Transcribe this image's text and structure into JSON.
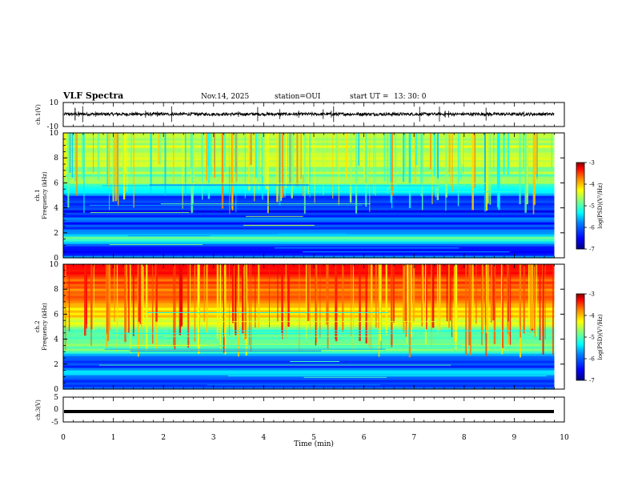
{
  "header": {
    "title": "VLF Spectra",
    "date": "Nov.14, 2025",
    "station": "station=OUI",
    "start_label": "start  UT  =",
    "start_time": "13: 30: 0"
  },
  "colors": {
    "jet": [
      "#00007f",
      "#0000ff",
      "#007fff",
      "#00ffff",
      "#7fff7f",
      "#ffff00",
      "#ff7f00",
      "#ff0000",
      "#7f0000"
    ]
  },
  "chart_data": [
    {
      "id": "ch1-waveform",
      "type": "line",
      "ylabel": "ch.1(V)",
      "xlim": [
        0,
        10
      ],
      "ylim": [
        -10,
        10
      ],
      "y_ticks": [
        "10",
        "-10"
      ],
      "trace": {
        "center": 0.3,
        "amplitude": 1.2,
        "end_min": 9.8
      }
    },
    {
      "id": "ch1-spectrogram",
      "type": "heatmap",
      "ylabel": "ch.1\nFrequency (kHz)",
      "xlim": [
        0,
        10
      ],
      "ylim": [
        0,
        10
      ],
      "y_ticks": [
        "0",
        "2",
        "4",
        "6",
        "8",
        "10"
      ],
      "data_end_min": 9.8,
      "profile_log_psd": [
        [
          0,
          -5.8
        ],
        [
          0.4,
          -6.3
        ],
        [
          0.8,
          -6.5
        ],
        [
          1.2,
          -5.6
        ],
        [
          1.6,
          -5.0
        ],
        [
          2.0,
          -5.9
        ],
        [
          2.6,
          -6.3
        ],
        [
          3.2,
          -6.2
        ],
        [
          3.8,
          -6.5
        ],
        [
          4.2,
          -6.0
        ],
        [
          4.8,
          -6.6
        ],
        [
          5.2,
          -5.8
        ],
        [
          5.8,
          -5.1
        ],
        [
          6.5,
          -5.0
        ],
        [
          7.5,
          -4.9
        ],
        [
          8.5,
          -4.8
        ],
        [
          10.0,
          -4.7
        ]
      ],
      "colorbar": {
        "label": "log(PSD)(V²/Hz)",
        "range": [
          -7,
          -3
        ],
        "ticks": [
          "-3",
          "-4",
          "-5",
          "-6",
          "-7"
        ]
      }
    },
    {
      "id": "ch2-spectrogram",
      "type": "heatmap",
      "ylabel": "ch.2\nFrequency (kHz)",
      "xlim": [
        0,
        10
      ],
      "ylim": [
        0,
        10
      ],
      "y_ticks": [
        "0",
        "2",
        "4",
        "6",
        "8",
        "10"
      ],
      "data_end_min": 9.8,
      "profile_log_psd": [
        [
          0,
          -6.2
        ],
        [
          0.6,
          -6.5
        ],
        [
          1.0,
          -6.1
        ],
        [
          1.4,
          -5.4
        ],
        [
          1.8,
          -6.2
        ],
        [
          2.4,
          -6.3
        ],
        [
          3.0,
          -5.2
        ],
        [
          3.5,
          -4.9
        ],
        [
          3.9,
          -5.0
        ],
        [
          4.3,
          -5.4
        ],
        [
          5.0,
          -4.7
        ],
        [
          6.0,
          -4.4
        ],
        [
          7.0,
          -4.1
        ],
        [
          8.0,
          -3.9
        ],
        [
          9.0,
          -3.8
        ],
        [
          10.0,
          -3.6
        ]
      ],
      "colorbar": {
        "label": "log(PSD)(V²/Hz)",
        "range": [
          -7,
          -3
        ],
        "ticks": [
          "-3",
          "-4",
          "-5",
          "-6",
          "-7"
        ]
      }
    },
    {
      "id": "ch3-waveform",
      "type": "line",
      "ylabel": "ch.3(V)",
      "xlim": [
        0,
        10
      ],
      "ylim": [
        -5,
        5
      ],
      "y_ticks": [
        "5",
        "0",
        "-5"
      ],
      "trace": {
        "center": -0.8,
        "amplitude": 0.15,
        "end_min": 9.8
      }
    }
  ],
  "x_axis": {
    "label": "Time  (min)",
    "ticks": [
      "0",
      "1",
      "2",
      "3",
      "4",
      "5",
      "6",
      "7",
      "8",
      "9",
      "10"
    ]
  }
}
